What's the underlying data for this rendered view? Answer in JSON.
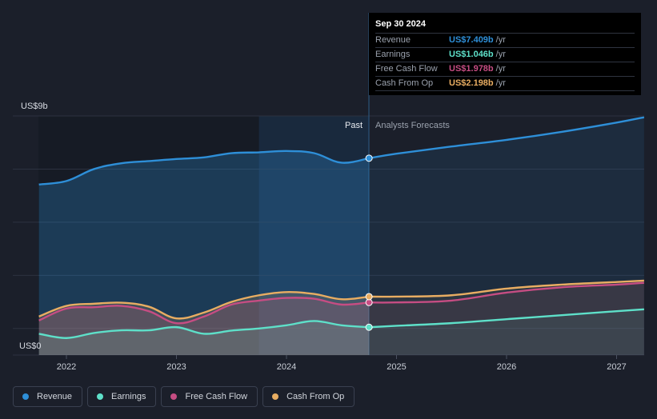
{
  "chart_data": {
    "type": "area",
    "y_tick_top": "US$9b",
    "y_tick_bottom": "US$0",
    "ylim": [
      0,
      9
    ],
    "xlim": [
      2021.7,
      2027.25
    ],
    "x_ticks": [
      "2022",
      "2023",
      "2024",
      "2025",
      "2026",
      "2027"
    ],
    "x_tick_values": [
      2022,
      2023,
      2024,
      2025,
      2026,
      2027
    ],
    "past_label": "Past",
    "forecast_label": "Analysts Forecasts",
    "divider_x": 2024.75,
    "grid": true,
    "series": [
      {
        "name": "Revenue",
        "color": "#2e8fd8",
        "x": [
          2021.75,
          2022.0,
          2022.25,
          2022.5,
          2022.75,
          2023.0,
          2023.25,
          2023.5,
          2023.75,
          2024.0,
          2024.25,
          2024.5,
          2024.75
        ],
        "values": [
          6.42,
          6.55,
          7.0,
          7.22,
          7.3,
          7.38,
          7.44,
          7.6,
          7.63,
          7.68,
          7.6,
          7.24,
          7.409
        ],
        "forecast_x": [
          2024.75,
          2025.0,
          2025.5,
          2026.0,
          2026.5,
          2027.0,
          2027.25
        ],
        "forecast_values": [
          7.409,
          7.58,
          7.85,
          8.1,
          8.4,
          8.75,
          8.95
        ]
      },
      {
        "name": "Earnings",
        "color": "#5ee0c9",
        "x": [
          2021.75,
          2022.0,
          2022.25,
          2022.5,
          2022.75,
          2023.0,
          2023.25,
          2023.5,
          2023.75,
          2024.0,
          2024.25,
          2024.5,
          2024.75
        ],
        "values": [
          0.8,
          0.64,
          0.83,
          0.93,
          0.93,
          1.05,
          0.8,
          0.92,
          1.0,
          1.12,
          1.28,
          1.12,
          1.046
        ],
        "forecast_x": [
          2024.75,
          2025.0,
          2025.5,
          2026.0,
          2026.5,
          2027.0,
          2027.25
        ],
        "forecast_values": [
          1.046,
          1.1,
          1.2,
          1.35,
          1.5,
          1.65,
          1.72
        ]
      },
      {
        "name": "Free Cash Flow",
        "color": "#c64d83",
        "x": [
          2021.75,
          2022.0,
          2022.25,
          2022.5,
          2022.75,
          2023.0,
          2023.25,
          2023.5,
          2023.75,
          2024.0,
          2024.25,
          2024.5,
          2024.75
        ],
        "values": [
          1.3,
          1.75,
          1.8,
          1.85,
          1.65,
          1.2,
          1.45,
          1.9,
          2.05,
          2.15,
          2.12,
          1.9,
          1.978
        ],
        "forecast_x": [
          2024.75,
          2025.0,
          2025.5,
          2026.0,
          2026.5,
          2027.0,
          2027.25
        ],
        "forecast_values": [
          1.978,
          1.98,
          2.05,
          2.35,
          2.55,
          2.65,
          2.72
        ]
      },
      {
        "name": "Cash From Op",
        "color": "#e8ad62",
        "x": [
          2021.75,
          2022.0,
          2022.25,
          2022.5,
          2022.75,
          2023.0,
          2023.25,
          2023.5,
          2023.75,
          2024.0,
          2024.25,
          2024.5,
          2024.75
        ],
        "values": [
          1.45,
          1.85,
          1.93,
          1.97,
          1.82,
          1.38,
          1.6,
          2.0,
          2.25,
          2.37,
          2.3,
          2.1,
          2.198
        ],
        "forecast_x": [
          2024.75,
          2025.0,
          2025.5,
          2026.0,
          2026.5,
          2027.0,
          2027.25
        ],
        "forecast_values": [
          2.198,
          2.2,
          2.25,
          2.5,
          2.65,
          2.75,
          2.8
        ]
      }
    ]
  },
  "tooltip": {
    "date": "Sep 30 2024",
    "rows": [
      {
        "name": "Revenue",
        "value": "US$7.409b",
        "unit": "/yr",
        "color": "#2e8fd8"
      },
      {
        "name": "Earnings",
        "value": "US$1.046b",
        "unit": "/yr",
        "color": "#5ee0c9"
      },
      {
        "name": "Free Cash Flow",
        "value": "US$1.978b",
        "unit": "/yr",
        "color": "#c64d83"
      },
      {
        "name": "Cash From Op",
        "value": "US$2.198b",
        "unit": "/yr",
        "color": "#e8ad62"
      }
    ]
  },
  "legend": [
    {
      "label": "Revenue",
      "color": "#2e8fd8"
    },
    {
      "label": "Earnings",
      "color": "#5ee0c9"
    },
    {
      "label": "Free Cash Flow",
      "color": "#c64d83"
    },
    {
      "label": "Cash From Op",
      "color": "#e8ad62"
    }
  ]
}
